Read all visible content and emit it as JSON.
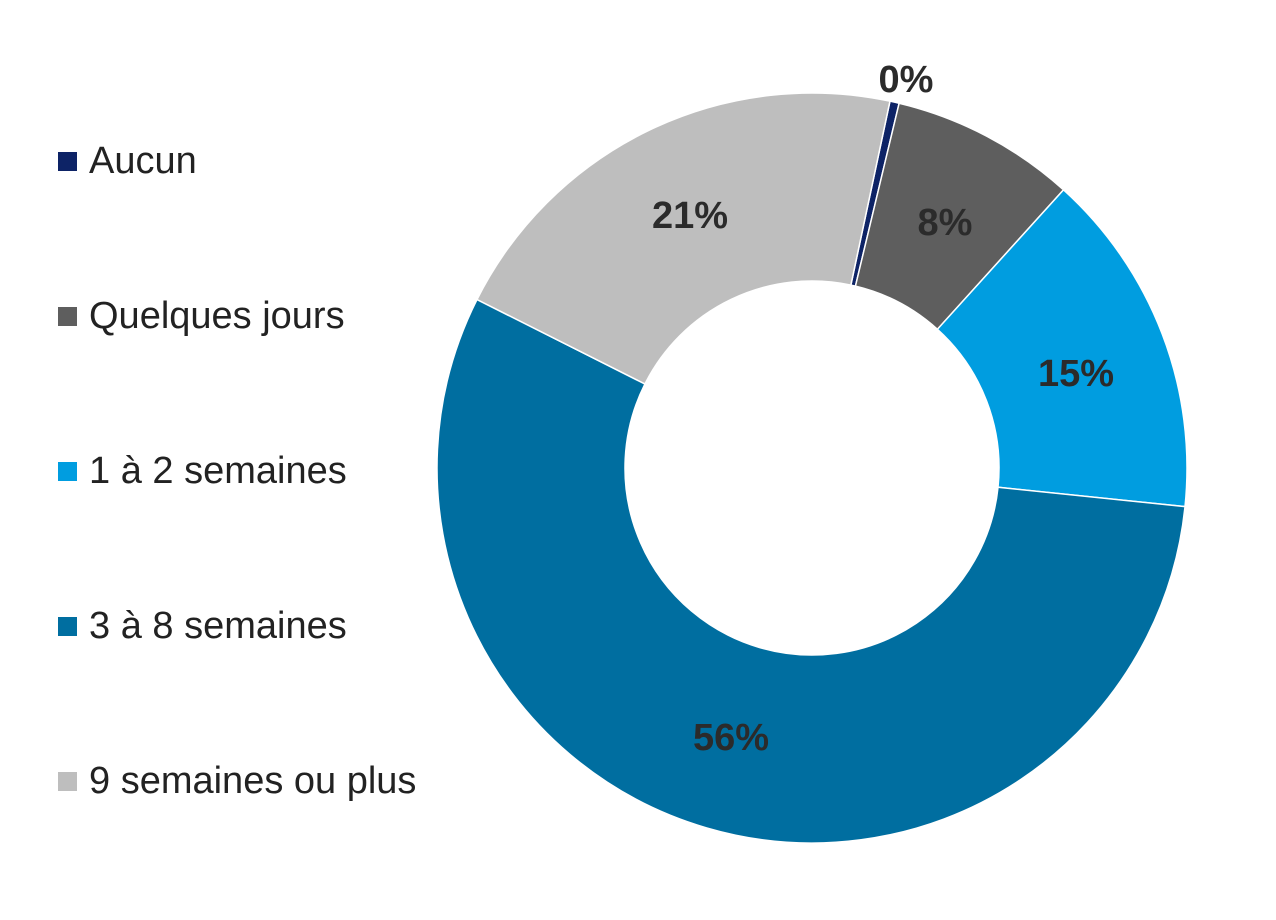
{
  "chart_data": {
    "type": "pie",
    "variant": "donut",
    "categories": [
      "Aucun",
      "Quelques jours",
      "1 à 2 semaines",
      "3 à 8 semaines",
      "9 semaines ou plus"
    ],
    "values": [
      0.4,
      8,
      15,
      56,
      21
    ],
    "data_labels": [
      "0%",
      "8%",
      "15%",
      "56%",
      "21%"
    ],
    "colors": [
      "#0d2366",
      "#5e5e5e",
      "#009de0",
      "#006ea0",
      "#bebebe"
    ],
    "legend_position": "left",
    "title": ""
  }
}
